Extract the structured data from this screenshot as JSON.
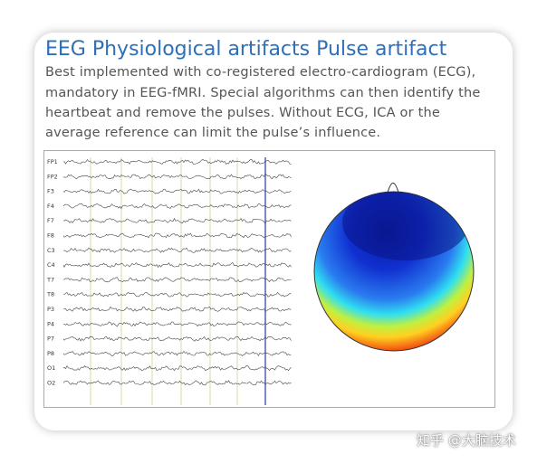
{
  "slide": {
    "title": "EEG Physiological artifacts Pulse artifact",
    "body": [
      "Best implemented with co-registered electro-cardiogram (ECG),",
      "mandatory in EEG-fMRI. Special algorithms can then identify the",
      "heartbeat and remove the pulses. Without ECG, ICA or the",
      "average reference can limit the pulse’s influence."
    ],
    "channels": [
      "FP1",
      "FP2",
      "F3",
      "F4",
      "F7",
      "F8",
      "C3",
      "C4",
      "T7",
      "T8",
      "P3",
      "P4",
      "P7",
      "P8",
      "O1",
      "O2"
    ]
  },
  "watermark": "知乎 @大脑技术"
}
